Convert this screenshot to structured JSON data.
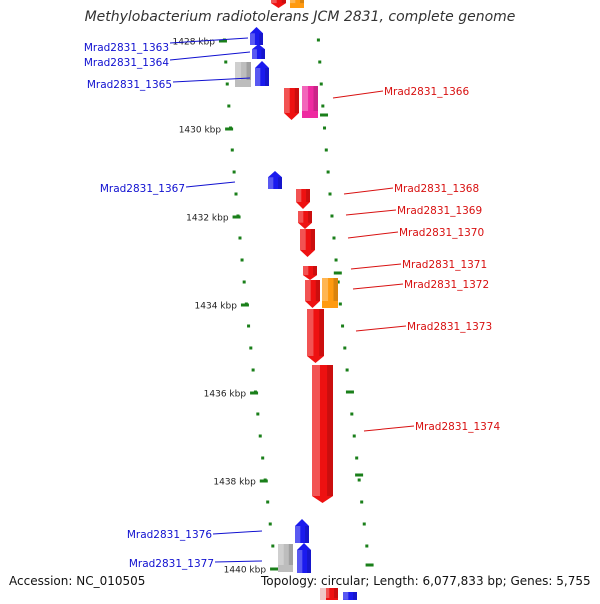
{
  "title": "Methylobacterium radiotolerans JCM 2831, complete genome",
  "footer": {
    "accession": "Accession: NC_010505",
    "summary": "Topology: circular; Length: 6,077,833 bp; Genes: 5,755"
  },
  "colors": {
    "backbone": "#8c8c8c",
    "tick": "#1a7f1a",
    "left_label": "#1010d0",
    "right_label": "#d81010",
    "gene_red": "#ee1111",
    "gene_blue": "#1a1aee",
    "gene_gray": "#bdbdbd",
    "gene_pink": "#ee2aa0",
    "gene_orange": "#ff9a10"
  },
  "scale_labels": [
    {
      "text": "1428 kbp",
      "kbp": 1428
    },
    {
      "text": "1430 kbp",
      "kbp": 1430
    },
    {
      "text": "1432 kbp",
      "kbp": 1432
    },
    {
      "text": "1434 kbp",
      "kbp": 1434
    },
    {
      "text": "1436 kbp",
      "kbp": 1436
    },
    {
      "text": "1438 kbp",
      "kbp": 1438
    },
    {
      "text": "1440 kbp",
      "kbp": 1440
    }
  ],
  "genes_left": [
    {
      "name": "Mrad2831_1363",
      "color": "gene_blue"
    },
    {
      "name": "Mrad2831_1364",
      "color": "gene_blue"
    },
    {
      "name": "Mrad2831_1365",
      "color": "gene_blue"
    },
    {
      "name": "Mrad2831_1367",
      "color": "gene_blue"
    },
    {
      "name": "Mrad2831_1376",
      "color": "gene_blue"
    },
    {
      "name": "Mrad2831_1377",
      "color": "gene_blue"
    }
  ],
  "genes_right": [
    {
      "name": "Mrad2831_1366",
      "color": "gene_red"
    },
    {
      "name": "Mrad2831_1368",
      "color": "gene_red"
    },
    {
      "name": "Mrad2831_1369",
      "color": "gene_red"
    },
    {
      "name": "Mrad2831_1370",
      "color": "gene_red"
    },
    {
      "name": "Mrad2831_1371",
      "color": "gene_red"
    },
    {
      "name": "Mrad2831_1372",
      "color": "gene_red"
    },
    {
      "name": "Mrad2831_1373",
      "color": "gene_red"
    },
    {
      "name": "Mrad2831_1374",
      "color": "gene_red"
    }
  ]
}
